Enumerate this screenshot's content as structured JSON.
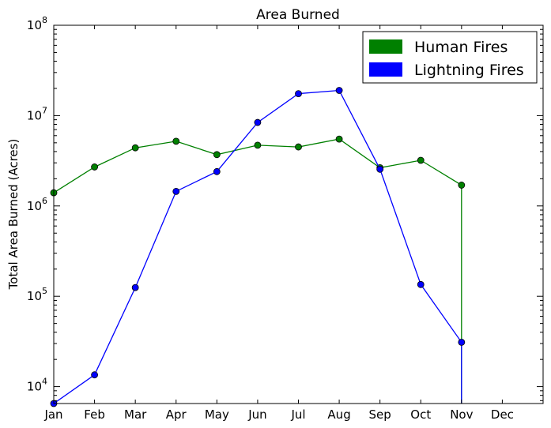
{
  "chart_data": {
    "type": "line",
    "title": "Area Burned",
    "xlabel": "",
    "ylabel": "Total Area Burned (Acres)",
    "yscale": "log",
    "ylim": [
      6500,
      100000000
    ],
    "categories": [
      "Jan",
      "Feb",
      "Mar",
      "Apr",
      "May",
      "Jun",
      "Jul",
      "Aug",
      "Sep",
      "Oct",
      "Nov",
      "Dec"
    ],
    "y_ticks": [
      {
        "base": "10",
        "exp": "4",
        "value": 10000
      },
      {
        "base": "10",
        "exp": "5",
        "value": 100000
      },
      {
        "base": "10",
        "exp": "6",
        "value": 1000000
      },
      {
        "base": "10",
        "exp": "7",
        "value": 10000000
      },
      {
        "base": "10",
        "exp": "8",
        "value": 100000000
      }
    ],
    "grid": false,
    "legend_position": "top-right",
    "series": [
      {
        "name": "Human Fires",
        "color": "#008000",
        "values": [
          1400000,
          2700000,
          4400000,
          5200000,
          3700000,
          4700000,
          4500000,
          5500000,
          2650000,
          3200000,
          1700000,
          null
        ]
      },
      {
        "name": "Lightning Fires",
        "color": "#0000ff",
        "values": [
          6500,
          13500,
          125000,
          1450000,
          2400000,
          8400000,
          17500000,
          19000000,
          2550000,
          135000,
          31000,
          null
        ]
      }
    ]
  }
}
